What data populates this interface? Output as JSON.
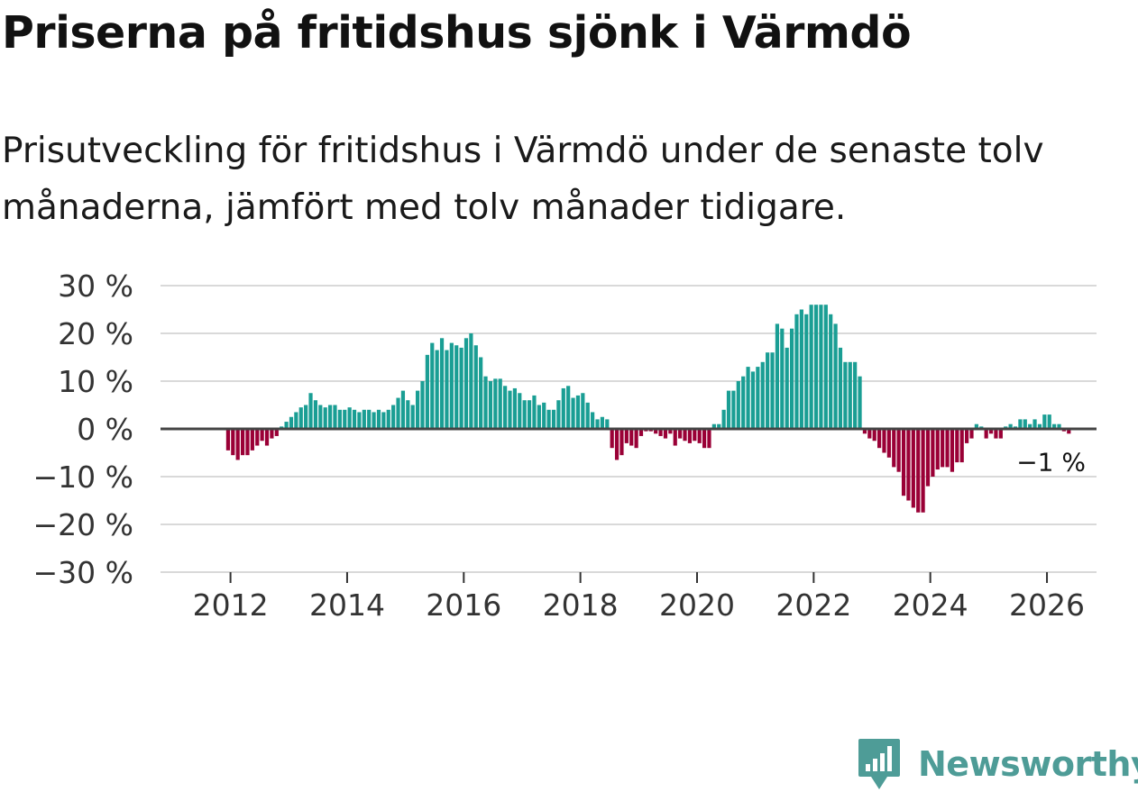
{
  "title": "Priserna på fritidshus sjönk i Värmdö",
  "subtitle": "Prisutveckling för fritidshus i Värmdö under de senaste tolv månaderna, jämfört med tolv månader tidigare.",
  "brand": {
    "name": "Newsworthy",
    "icon": "newsworthy-logo-icon",
    "color": "#4e9c97"
  },
  "colors": {
    "positive": "#1a9e94",
    "negative": "#9a0036",
    "grid": "#d9d9d9",
    "zero": "#444444"
  },
  "chart_data": {
    "type": "bar",
    "title": "Priserna på fritidshus sjönk i Värmdö",
    "xlabel": "",
    "ylabel": "",
    "ylim": [
      -30,
      30
    ],
    "xlim": [
      2010.8,
      2026.85
    ],
    "yticks": [
      30,
      20,
      10,
      0,
      -10,
      -20,
      -30
    ],
    "ytick_labels": [
      "30 %",
      "20 %",
      "10 %",
      "0 %",
      "−10 %",
      "−20 %",
      "−30 %"
    ],
    "xticks": [
      2012,
      2014,
      2016,
      2018,
      2020,
      2022,
      2024,
      2026
    ],
    "xtick_labels": [
      "2012",
      "2014",
      "2016",
      "2018",
      "2020",
      "2022",
      "2024",
      "2026"
    ],
    "start": {
      "year": 2011,
      "month": 12
    },
    "values": [
      -4.5,
      -5.5,
      -6.5,
      -5.5,
      -5.5,
      -4.5,
      -3.5,
      -2.5,
      -3.5,
      -2.0,
      -1.5,
      0.5,
      1.5,
      2.5,
      3.5,
      4.5,
      5.0,
      7.5,
      6.0,
      5.0,
      4.5,
      5.0,
      5.0,
      4.0,
      4.0,
      4.5,
      4.0,
      3.5,
      4.0,
      4.0,
      3.5,
      4.0,
      3.5,
      4.0,
      5.0,
      6.5,
      8.0,
      6.0,
      5.0,
      8.0,
      10.0,
      15.5,
      18.0,
      16.5,
      19.0,
      16.5,
      18.0,
      17.5,
      17.0,
      19.0,
      20.0,
      17.5,
      15.0,
      11.0,
      10.0,
      10.5,
      10.5,
      9.0,
      8.0,
      8.5,
      7.5,
      6.0,
      6.0,
      7.0,
      5.0,
      5.5,
      4.0,
      4.0,
      6.0,
      8.5,
      9.0,
      6.5,
      7.0,
      7.5,
      5.5,
      3.5,
      2.0,
      2.5,
      2.0,
      -4.0,
      -6.5,
      -5.5,
      -3.0,
      -3.5,
      -4.0,
      -1.5,
      -0.5,
      -0.5,
      -1.0,
      -1.5,
      -2.0,
      -1.0,
      -3.5,
      -2.0,
      -2.5,
      -3.0,
      -2.5,
      -3.0,
      -4.0,
      -4.0,
      1.0,
      1.0,
      4.0,
      8.0,
      8.0,
      10.0,
      11.0,
      13.0,
      12.0,
      13.0,
      14.0,
      16.0,
      16.0,
      22.0,
      21.0,
      17.0,
      21.0,
      24.0,
      25.0,
      24.0,
      26.0,
      26.0,
      26.0,
      26.0,
      24.0,
      22.0,
      17.0,
      14.0,
      14.0,
      14.0,
      11.0,
      -1.0,
      -2.0,
      -2.5,
      -4.0,
      -5.0,
      -6.0,
      -8.0,
      -9.0,
      -14.0,
      -15.0,
      -16.5,
      -17.5,
      -17.5,
      -12.0,
      -10.0,
      -8.5,
      -8.0,
      -8.0,
      -9.0,
      -7.0,
      -7.0,
      -3.0,
      -2.0,
      1.0,
      0.5,
      -2.0,
      -1.0,
      -2.0,
      -2.0,
      0.5,
      1.0,
      0.5,
      2.0,
      2.0,
      1.0,
      2.0,
      1.0,
      3.0,
      3.0,
      1.0,
      1.0,
      -0.5,
      -1.0
    ],
    "annotation": {
      "label": "−1 %",
      "value": -1
    }
  }
}
